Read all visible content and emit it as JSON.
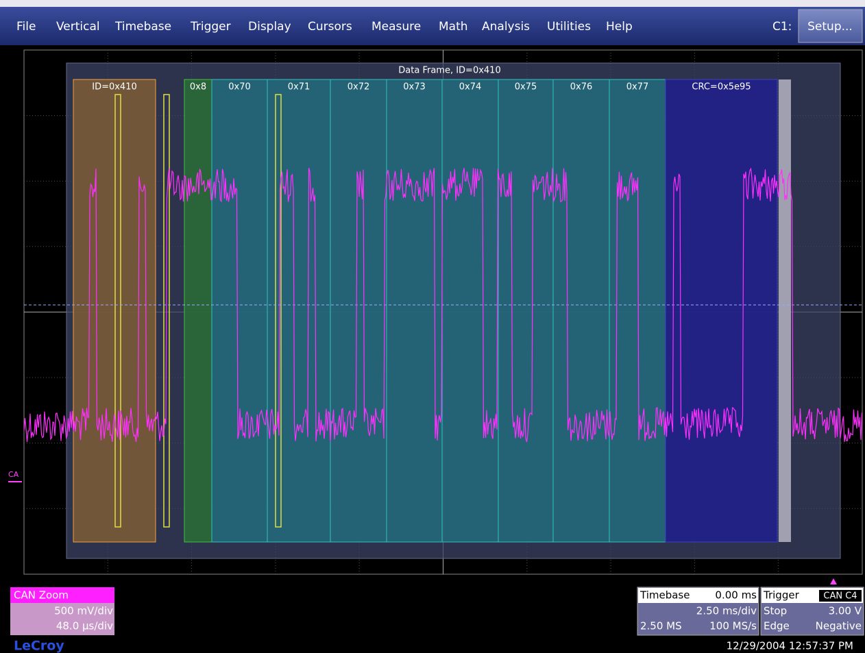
{
  "menu": [
    "File",
    "Vertical",
    "Timebase",
    "Trigger",
    "Display",
    "Cursors",
    "Measure",
    "Math",
    "Analysis",
    "Utilities",
    "Help"
  ],
  "channel_label": "C1:",
  "setup_button": "Setup...",
  "frame_title": "Data Frame, ID=0x410",
  "fields": [
    "ID=0x410",
    "0x8",
    "0x70",
    "0x71",
    "0x72",
    "0x73",
    "0x74",
    "0x75",
    "0x76",
    "0x77",
    "CRC=0x5e95"
  ],
  "trace_marker": "CA",
  "zoom_box": {
    "title": "CAN Zoom",
    "vdiv": "500 mV/div",
    "hdiv": "48.0 µs/div"
  },
  "timebase_box": {
    "title": "Timebase",
    "delay": "0.00 ms",
    "tdiv": "2.50 ms/div",
    "samples": "2.50 MS",
    "rate": "100 MS/s"
  },
  "trigger_box": {
    "title": "Trigger",
    "source": "CAN C4",
    "mode": "Stop",
    "level": "3.00 V",
    "type": "Edge",
    "slope": "Negative"
  },
  "timestamp": "12/29/2004 12:57:37 PM",
  "brand": "LeCroy"
}
